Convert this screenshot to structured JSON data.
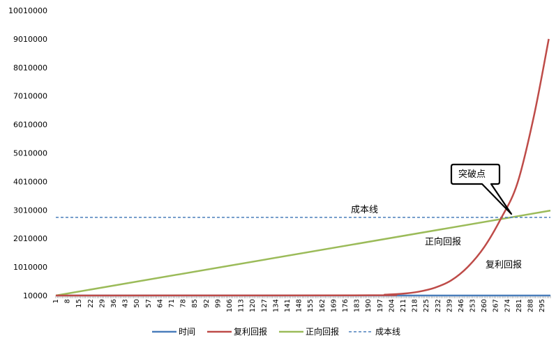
{
  "chart_data": {
    "type": "line",
    "title": "",
    "xlabel": "",
    "ylabel": "",
    "ylim": [
      10000,
      10010000
    ],
    "xlim": [
      1,
      300
    ],
    "y_ticks": [
      "10000",
      "1010000",
      "2010000",
      "3010000",
      "4010000",
      "5010000",
      "6010000",
      "7010000",
      "8010000",
      "9010000",
      "10010000"
    ],
    "x_ticks": [
      "1",
      "8",
      "15",
      "22",
      "29",
      "36",
      "43",
      "50",
      "57",
      "64",
      "71",
      "78",
      "85",
      "92",
      "99",
      "106",
      "113",
      "120",
      "127",
      "134",
      "141",
      "148",
      "155",
      "162",
      "169",
      "176",
      "183",
      "190",
      "197",
      "204",
      "211",
      "218",
      "225",
      "232",
      "239",
      "246",
      "253",
      "260",
      "267",
      "274",
      "281",
      "288",
      "295"
    ],
    "grid": false,
    "legend_position": "bottom",
    "series": [
      {
        "name": "时间",
        "color": "#4a7ebb",
        "style": "solid",
        "points": [
          [
            1,
            10000
          ],
          [
            300,
            10000
          ]
        ]
      },
      {
        "name": "复利回报",
        "color": "#be4b48",
        "style": "solid",
        "points": [
          [
            1,
            10000
          ],
          [
            190,
            18000
          ],
          [
            200,
            40000
          ],
          [
            210,
            70000
          ],
          [
            220,
            140000
          ],
          [
            230,
            280000
          ],
          [
            240,
            540000
          ],
          [
            250,
            1010000
          ],
          [
            260,
            1710000
          ],
          [
            270,
            2700000
          ],
          [
            280,
            3940000
          ],
          [
            290,
            6300000
          ],
          [
            299,
            9010000
          ]
        ]
      },
      {
        "name": "正向回报",
        "color": "#9bbb59",
        "style": "solid",
        "points": [
          [
            1,
            10000
          ],
          [
            300,
            2990000
          ]
        ]
      },
      {
        "name": "成本线",
        "color": "#4a7ebb",
        "style": "dashed",
        "points": [
          [
            1,
            2750000
          ],
          [
            300,
            2750000
          ]
        ]
      }
    ],
    "annotations": {
      "cost_line": "成本线",
      "positive_return": "正向回报",
      "compound_return": "复利回报",
      "breakthrough": "突破点"
    }
  }
}
